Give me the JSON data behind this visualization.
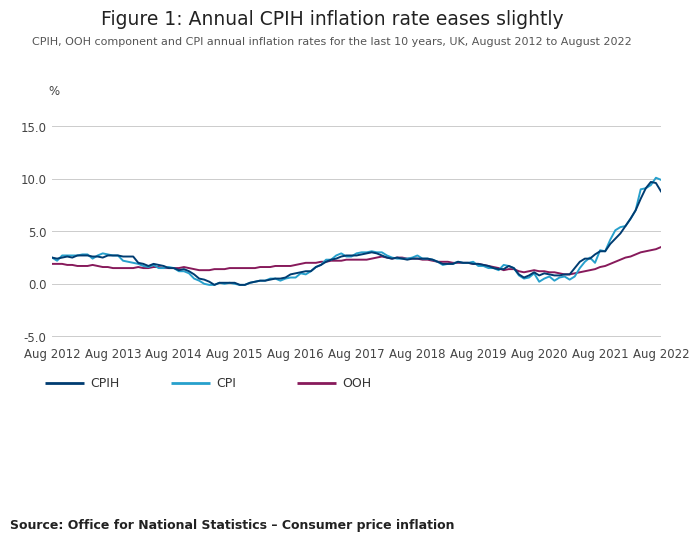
{
  "title": "Figure 1: Annual CPIH inflation rate eases slightly",
  "subtitle": "CPIH, OOH component and CPI annual inflation rates for the last 10 years, UK, August 2012 to August 2022",
  "source": "Source: Office for National Statistics – Consumer price inflation",
  "ylabel": "%",
  "ylim": [
    -5.5,
    17.5
  ],
  "yticks": [
    -5.0,
    0.0,
    5.0,
    10.0,
    15.0
  ],
  "bg_color": "#ffffff",
  "cpih_color": "#003c71",
  "cpi_color": "#27a0cc",
  "ooh_color": "#871a5b",
  "line_width": 1.4,
  "cpih": [
    2.5,
    2.4,
    2.5,
    2.6,
    2.5,
    2.7,
    2.7,
    2.7,
    2.6,
    2.6,
    2.5,
    2.7,
    2.7,
    2.7,
    2.6,
    2.6,
    2.6,
    2.0,
    1.9,
    1.7,
    1.9,
    1.8,
    1.7,
    1.5,
    1.5,
    1.3,
    1.4,
    1.2,
    0.9,
    0.5,
    0.4,
    0.2,
    -0.1,
    0.1,
    0.1,
    0.1,
    0.1,
    -0.1,
    -0.1,
    0.1,
    0.2,
    0.3,
    0.3,
    0.4,
    0.5,
    0.5,
    0.6,
    0.9,
    1.0,
    1.1,
    1.2,
    1.2,
    1.6,
    1.8,
    2.1,
    2.3,
    2.4,
    2.6,
    2.7,
    2.7,
    2.7,
    2.8,
    2.9,
    3.0,
    2.9,
    2.7,
    2.5,
    2.4,
    2.5,
    2.4,
    2.3,
    2.4,
    2.4,
    2.4,
    2.4,
    2.3,
    2.1,
    1.9,
    1.9,
    1.9,
    2.1,
    2.0,
    2.0,
    1.9,
    1.9,
    1.8,
    1.7,
    1.5,
    1.4,
    1.4,
    1.7,
    1.5,
    0.9,
    0.6,
    0.8,
    1.1,
    0.8,
    1.0,
    0.9,
    0.8,
    0.8,
    0.9,
    0.9,
    1.5,
    2.1,
    2.4,
    2.4,
    2.8,
    3.1,
    3.1,
    3.8,
    4.3,
    4.8,
    5.5,
    6.2,
    7.0,
    8.1,
    9.1,
    9.7,
    9.6,
    8.8
  ],
  "cpi": [
    2.5,
    2.2,
    2.7,
    2.7,
    2.7,
    2.7,
    2.8,
    2.8,
    2.4,
    2.7,
    2.9,
    2.8,
    2.7,
    2.7,
    2.2,
    2.1,
    2.0,
    1.9,
    1.7,
    1.6,
    1.8,
    1.5,
    1.5,
    1.6,
    1.5,
    1.2,
    1.2,
    1.0,
    0.5,
    0.3,
    0.0,
    -0.1,
    -0.1,
    0.1,
    0.0,
    0.1,
    0.0,
    -0.1,
    -0.1,
    0.1,
    0.2,
    0.3,
    0.3,
    0.5,
    0.5,
    0.3,
    0.5,
    0.6,
    0.6,
    1.0,
    0.9,
    1.2,
    1.6,
    1.8,
    2.3,
    2.3,
    2.7,
    2.9,
    2.6,
    2.6,
    2.9,
    3.0,
    3.0,
    3.1,
    3.0,
    3.0,
    2.7,
    2.5,
    2.4,
    2.4,
    2.4,
    2.5,
    2.7,
    2.4,
    2.4,
    2.3,
    2.1,
    1.8,
    1.9,
    1.9,
    2.1,
    2.0,
    2.0,
    2.1,
    1.7,
    1.7,
    1.5,
    1.5,
    1.3,
    1.8,
    1.7,
    1.5,
    0.8,
    0.5,
    0.6,
    1.0,
    0.2,
    0.5,
    0.7,
    0.3,
    0.6,
    0.7,
    0.4,
    0.7,
    1.5,
    2.1,
    2.5,
    2.0,
    3.2,
    3.1,
    4.2,
    5.1,
    5.4,
    5.5,
    6.2,
    7.0,
    9.0,
    9.1,
    9.4,
    10.1,
    9.9
  ],
  "ooh": [
    1.9,
    1.9,
    1.9,
    1.8,
    1.8,
    1.7,
    1.7,
    1.7,
    1.8,
    1.7,
    1.6,
    1.6,
    1.5,
    1.5,
    1.5,
    1.5,
    1.5,
    1.6,
    1.5,
    1.5,
    1.6,
    1.6,
    1.5,
    1.5,
    1.5,
    1.5,
    1.6,
    1.5,
    1.4,
    1.3,
    1.3,
    1.3,
    1.4,
    1.4,
    1.4,
    1.5,
    1.5,
    1.5,
    1.5,
    1.5,
    1.5,
    1.6,
    1.6,
    1.6,
    1.7,
    1.7,
    1.7,
    1.7,
    1.8,
    1.9,
    2.0,
    2.0,
    2.0,
    2.1,
    2.1,
    2.2,
    2.2,
    2.2,
    2.3,
    2.3,
    2.3,
    2.3,
    2.3,
    2.4,
    2.5,
    2.6,
    2.5,
    2.4,
    2.5,
    2.5,
    2.4,
    2.4,
    2.4,
    2.3,
    2.3,
    2.2,
    2.1,
    2.1,
    2.1,
    2.0,
    2.0,
    2.0,
    2.0,
    1.9,
    1.9,
    1.8,
    1.7,
    1.6,
    1.5,
    1.3,
    1.4,
    1.4,
    1.2,
    1.1,
    1.2,
    1.3,
    1.2,
    1.2,
    1.1,
    1.1,
    1.0,
    0.9,
    0.9,
    1.0,
    1.1,
    1.2,
    1.3,
    1.4,
    1.6,
    1.7,
    1.9,
    2.1,
    2.3,
    2.5,
    2.6,
    2.8,
    3.0,
    3.1,
    3.2,
    3.3,
    3.5
  ],
  "xtick_labels": [
    "Aug 2012",
    "Aug 2013",
    "Aug 2014",
    "Aug 2015",
    "Aug 2016",
    "Aug 2017",
    "Aug 2018",
    "Aug 2019",
    "Aug 2020",
    "Aug 2021",
    "Aug 2022"
  ],
  "xtick_positions": [
    0,
    12,
    24,
    36,
    48,
    60,
    72,
    84,
    96,
    108,
    120
  ]
}
